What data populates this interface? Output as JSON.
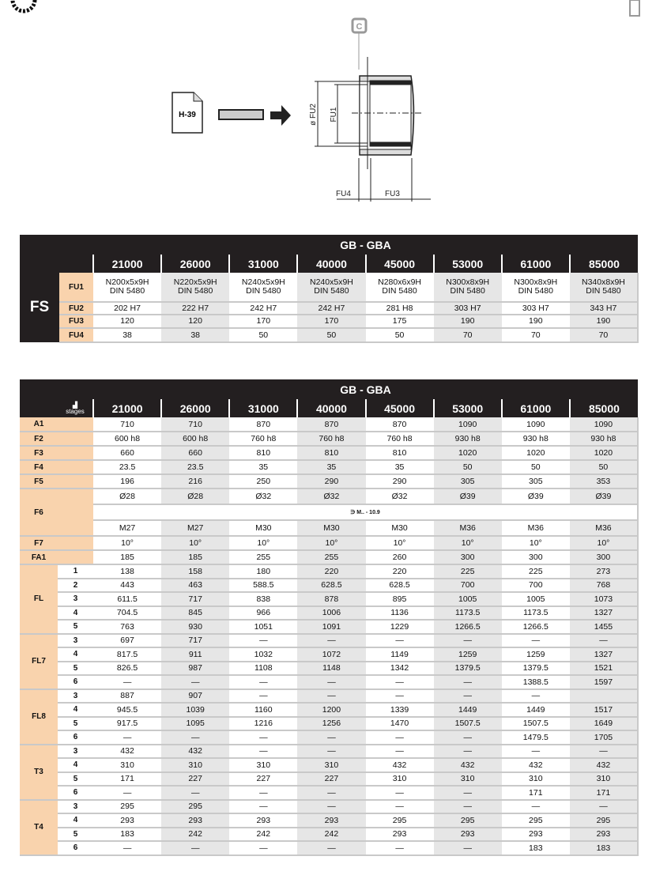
{
  "diagram": {
    "doc_ref": "H-39",
    "marker": "C",
    "labels": {
      "fu1": "FU1",
      "fu2": "ø FU2",
      "fu3": "FU3",
      "fu4": "FU4"
    }
  },
  "colors": {
    "header_bg": "#231f20",
    "label_bg": "#f9d3ad",
    "alt_col_bg": "#e6e6e6"
  },
  "columns": [
    "21000",
    "26000",
    "31000",
    "40000",
    "45000",
    "53000",
    "61000",
    "85000"
  ],
  "table_fs": {
    "title": "GB - GBA",
    "section": "FS",
    "rows": [
      {
        "label": "FU1",
        "values": [
          "N200x5x9H\nDIN 5480",
          "N220x5x9H\nDIN 5480",
          "N240x5x9H\nDIN 5480",
          "N240x5x9H\nDIN 5480",
          "N280x6x9H\nDIN 5480",
          "N300x8x9H\nDIN 5480",
          "N300x8x9H\nDIN 5480",
          "N340x8x9H\nDIN 5480"
        ]
      },
      {
        "label": "FU2",
        "values": [
          "202 H7",
          "222 H7",
          "242 H7",
          "242 H7",
          "281 H8",
          "303 H7",
          "303 H7",
          "343 H7"
        ]
      },
      {
        "label": "FU3",
        "values": [
          "120",
          "120",
          "170",
          "170",
          "175",
          "190",
          "190",
          "190"
        ]
      },
      {
        "label": "FU4",
        "values": [
          "38",
          "38",
          "50",
          "50",
          "50",
          "70",
          "70",
          "70"
        ]
      }
    ]
  },
  "table_dims": {
    "title": "GB - GBA",
    "stages_label": "stages",
    "groups": [
      {
        "label": "A1",
        "rows": [
          {
            "stage": "",
            "values": [
              "710",
              "710",
              "870",
              "870",
              "870",
              "1090",
              "1090",
              "1090"
            ]
          }
        ]
      },
      {
        "label": "F2",
        "rows": [
          {
            "stage": "",
            "values": [
              "600 h8",
              "600 h8",
              "760 h8",
              "760 h8",
              "760 h8",
              "930 h8",
              "930 h8",
              "930 h8"
            ]
          }
        ]
      },
      {
        "label": "F3",
        "rows": [
          {
            "stage": "",
            "values": [
              "660",
              "660",
              "810",
              "810",
              "810",
              "1020",
              "1020",
              "1020"
            ]
          }
        ]
      },
      {
        "label": "F4",
        "rows": [
          {
            "stage": "",
            "values": [
              "23.5",
              "23.5",
              "35",
              "35",
              "35",
              "50",
              "50",
              "50"
            ]
          }
        ]
      },
      {
        "label": "F5",
        "rows": [
          {
            "stage": "",
            "values": [
              "196",
              "216",
              "250",
              "290",
              "290",
              "305",
              "305",
              "353"
            ]
          }
        ]
      },
      {
        "label": "F6",
        "rows": [
          {
            "stage": "",
            "values": [
              "Ø28",
              "Ø28",
              "Ø32",
              "Ø32",
              "Ø32",
              "Ø39",
              "Ø39",
              "Ø39"
            ]
          },
          {
            "stage": "",
            "note": "∋  M.. - 10.9"
          },
          {
            "stage": "",
            "values": [
              "M27",
              "M27",
              "M30",
              "M30",
              "M30",
              "M36",
              "M36",
              "M36"
            ]
          }
        ]
      },
      {
        "label": "F7",
        "rows": [
          {
            "stage": "",
            "values": [
              "10°",
              "10°",
              "10°",
              "10°",
              "10°",
              "10°",
              "10°",
              "10°"
            ]
          }
        ]
      },
      {
        "label": "FA1",
        "rows": [
          {
            "stage": "",
            "values": [
              "185",
              "185",
              "255",
              "255",
              "260",
              "300",
              "300",
              "300"
            ]
          }
        ]
      },
      {
        "label": "FL",
        "rows": [
          {
            "stage": "1",
            "values": [
              "138",
              "158",
              "180",
              "220",
              "220",
              "225",
              "225",
              "273"
            ]
          },
          {
            "stage": "2",
            "values": [
              "443",
              "463",
              "588.5",
              "628.5",
              "628.5",
              "700",
              "700",
              "768"
            ]
          },
          {
            "stage": "3",
            "values": [
              "611.5",
              "717",
              "838",
              "878",
              "895",
              "1005",
              "1005",
              "1073"
            ]
          },
          {
            "stage": "4",
            "values": [
              "704.5",
              "845",
              "966",
              "1006",
              "1136",
              "1173.5",
              "1173.5",
              "1327"
            ]
          },
          {
            "stage": "5",
            "values": [
              "763",
              "930",
              "1051",
              "1091",
              "1229",
              "1266.5",
              "1266.5",
              "1455"
            ]
          }
        ]
      },
      {
        "label": "FL7",
        "rows": [
          {
            "stage": "3",
            "values": [
              "697",
              "717",
              "—",
              "—",
              "—",
              "—",
              "—",
              "—"
            ]
          },
          {
            "stage": "4",
            "values": [
              "817.5",
              "911",
              "1032",
              "1072",
              "1149",
              "1259",
              "1259",
              "1327"
            ]
          },
          {
            "stage": "5",
            "values": [
              "826.5",
              "987",
              "1108",
              "1148",
              "1342",
              "1379.5",
              "1379.5",
              "1521"
            ]
          },
          {
            "stage": "6",
            "values": [
              "—",
              "—",
              "—",
              "—",
              "—",
              "—",
              "1388.5",
              "1597"
            ]
          }
        ]
      },
      {
        "label": "FL8",
        "rows": [
          {
            "stage": "3",
            "values": [
              "887",
              "907",
              "—",
              "—",
              "—",
              "—",
              "—",
              ""
            ]
          },
          {
            "stage": "4",
            "values": [
              "945.5",
              "1039",
              "1160",
              "1200",
              "1339",
              "1449",
              "1449",
              "1517"
            ]
          },
          {
            "stage": "5",
            "values": [
              "917.5",
              "1095",
              "1216",
              "1256",
              "1470",
              "1507.5",
              "1507.5",
              "1649"
            ]
          },
          {
            "stage": "6",
            "values": [
              "—",
              "—",
              "—",
              "—",
              "—",
              "—",
              "1479.5",
              "1705"
            ]
          }
        ]
      },
      {
        "label": "T3",
        "rows": [
          {
            "stage": "3",
            "values": [
              "432",
              "432",
              "—",
              "—",
              "—",
              "—",
              "—",
              "—"
            ]
          },
          {
            "stage": "4",
            "values": [
              "310",
              "310",
              "310",
              "310",
              "432",
              "432",
              "432",
              "432"
            ]
          },
          {
            "stage": "5",
            "values": [
              "171",
              "227",
              "227",
              "227",
              "310",
              "310",
              "310",
              "310"
            ]
          },
          {
            "stage": "6",
            "values": [
              "—",
              "—",
              "—",
              "—",
              "—",
              "—",
              "171",
              "171"
            ]
          }
        ]
      },
      {
        "label": "T4",
        "rows": [
          {
            "stage": "3",
            "values": [
              "295",
              "295",
              "—",
              "—",
              "—",
              "—",
              "—",
              "—"
            ]
          },
          {
            "stage": "4",
            "values": [
              "293",
              "293",
              "293",
              "293",
              "295",
              "295",
              "295",
              "295"
            ]
          },
          {
            "stage": "5",
            "values": [
              "183",
              "242",
              "242",
              "242",
              "293",
              "293",
              "293",
              "293"
            ]
          },
          {
            "stage": "6",
            "values": [
              "—",
              "—",
              "—",
              "—",
              "—",
              "—",
              "183",
              "183"
            ]
          }
        ]
      }
    ]
  }
}
